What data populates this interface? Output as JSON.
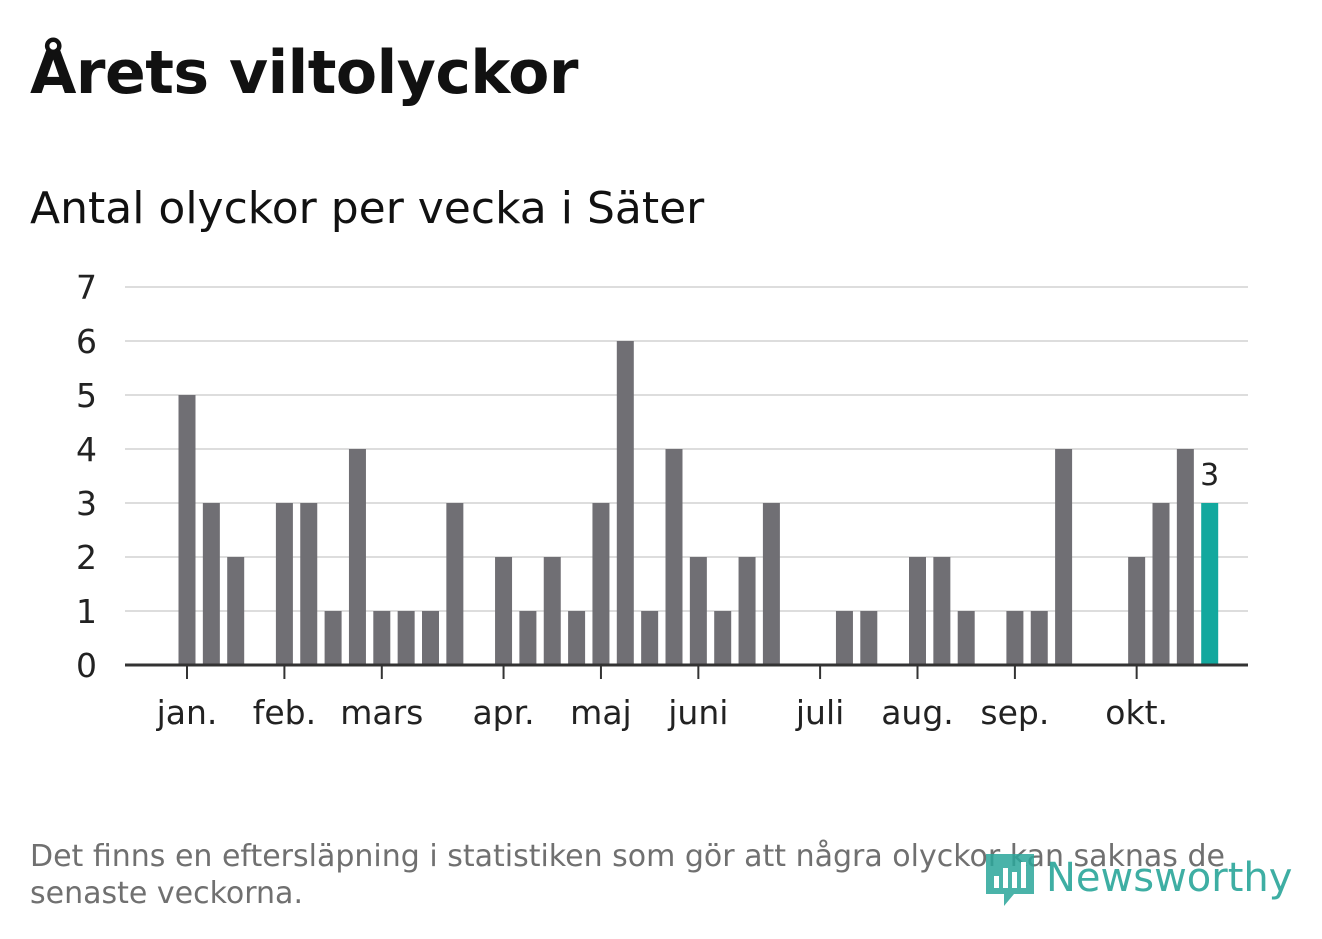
{
  "title": "Årets viltolyckor",
  "subtitle": "Antal olyckor per vecka i Säter",
  "footnote": "Det finns en eftersläpning i statistiken som gör att några olyckor kan saknas de senaste veckorna.",
  "logo": {
    "text": "Newsworthy",
    "icon": "newsworthy-bars-icon",
    "color": "#2aa69a"
  },
  "colors": {
    "bar": "#706f74",
    "highlight": "#13a89e",
    "grid": "#dddddd",
    "axis": "#333333"
  },
  "chart_data": {
    "type": "bar",
    "title": "Antal olyckor per vecka i Säter",
    "xlabel": "",
    "ylabel": "",
    "ylim": [
      0,
      7
    ],
    "yticks": [
      0,
      1,
      2,
      3,
      4,
      5,
      6,
      7
    ],
    "grid": true,
    "x": [
      1,
      2,
      3,
      4,
      5,
      6,
      7,
      8,
      9,
      10,
      11,
      12,
      13,
      14,
      15,
      16,
      17,
      18,
      19,
      20,
      21,
      22,
      23,
      24,
      25,
      26,
      27,
      28,
      29,
      30,
      31,
      32,
      33,
      34,
      35,
      36,
      37,
      38,
      39,
      40,
      41,
      42,
      43
    ],
    "values": [
      5,
      3,
      2,
      0,
      3,
      3,
      1,
      4,
      1,
      1,
      1,
      3,
      0,
      2,
      1,
      2,
      1,
      3,
      6,
      1,
      4,
      2,
      1,
      2,
      3,
      0,
      0,
      1,
      1,
      0,
      2,
      2,
      1,
      0,
      1,
      1,
      4,
      0,
      0,
      2,
      3,
      4,
      3
    ],
    "highlight_index": 42,
    "highlight_label": "3",
    "month_ticks": [
      {
        "label": "jan.",
        "week": 1
      },
      {
        "label": "feb.",
        "week": 5
      },
      {
        "label": "mars",
        "week": 9
      },
      {
        "label": "apr.",
        "week": 14
      },
      {
        "label": "maj",
        "week": 18
      },
      {
        "label": "juni",
        "week": 22
      },
      {
        "label": "juli",
        "week": 27
      },
      {
        "label": "aug.",
        "week": 31
      },
      {
        "label": "sep.",
        "week": 35
      },
      {
        "label": "okt.",
        "week": 40
      }
    ]
  }
}
